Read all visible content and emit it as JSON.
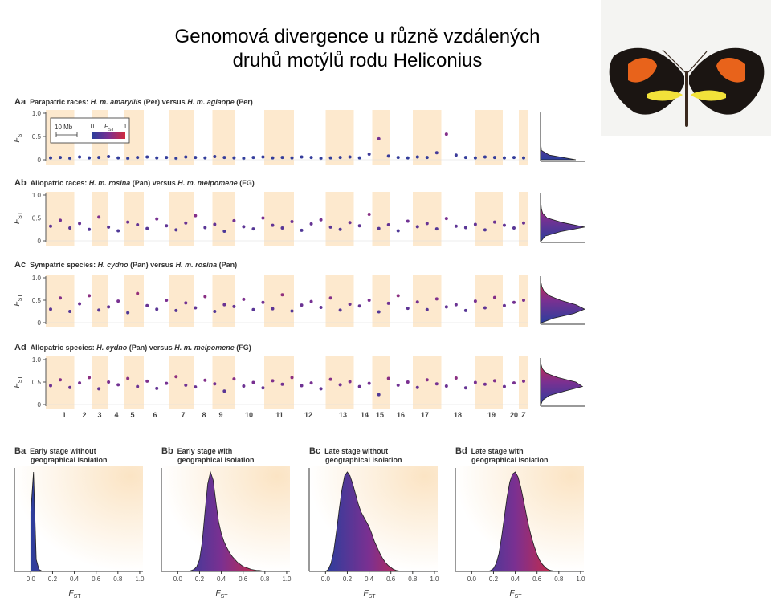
{
  "title_lines": [
    "Genomová divergence u různě vzdálených",
    "druhů motýlů rodu Heliconius"
  ],
  "colors": {
    "low": "#2c3e9c",
    "mid": "#7b3091",
    "high": "#d22a3c"
  },
  "panel_a": {
    "fst_label": {
      "main": "F",
      "sub": "ST"
    },
    "ylim": [
      0,
      1
    ],
    "yticks": [
      0,
      0.5,
      {
        "value": 1,
        "label": "1.0"
      }
    ],
    "legend": {
      "scale": "10 Mb",
      "ticks": [
        0,
        1
      ]
    },
    "chromosomes": [
      "1",
      "2",
      "3",
      "4",
      "5",
      "6",
      "7",
      "8",
      "9",
      "10",
      "11",
      "12",
      "13",
      "14",
      "15",
      "16",
      "17",
      "18",
      "19",
      "20",
      "Z"
    ],
    "marginal_fst": [
      0,
      0.1,
      0.2,
      0.3,
      0.4,
      0.5,
      0.6,
      0.7,
      0.8,
      0.9,
      1
    ],
    "rows": [
      {
        "id": "Aa",
        "label": [
          "Parapatric races: ",
          "H. m. amaryllis",
          " (Per) versus ",
          "H. m. aglaope",
          " (Per)"
        ],
        "fst": [
          0.04,
          0.05,
          0.03,
          0.06,
          0.04,
          0.05,
          0.07,
          0.04,
          0.03,
          0.05,
          0.06,
          0.04,
          0.05,
          0.03,
          0.06,
          0.05,
          0.04,
          0.07,
          0.05,
          0.04,
          0.03,
          0.05,
          0.06,
          0.04,
          0.05,
          0.04,
          0.06,
          0.05,
          0.03,
          0.04,
          0.05,
          0.06,
          0.04,
          0.12,
          0.45,
          0.08,
          0.05,
          0.04,
          0.06,
          0.05,
          0.15,
          0.55,
          0.1,
          0.05,
          0.04,
          0.06,
          0.05,
          0.04,
          0.05,
          0.04
        ],
        "marginal": [
          80,
          20,
          2,
          1,
          0.5,
          0.3,
          0.2,
          0.1,
          0,
          0,
          0
        ]
      },
      {
        "id": "Ab",
        "label": [
          "Allopatric races: ",
          "H. m. rosina",
          " (Pan) versus ",
          "H. m. melpomene",
          " (FG)"
        ],
        "fst": [
          0.32,
          0.45,
          0.28,
          0.38,
          0.25,
          0.52,
          0.3,
          0.22,
          0.41,
          0.35,
          0.27,
          0.48,
          0.33,
          0.24,
          0.39,
          0.55,
          0.29,
          0.36,
          0.21,
          0.44,
          0.31,
          0.26,
          0.5,
          0.34,
          0.28,
          0.42,
          0.23,
          0.37,
          0.46,
          0.3,
          0.25,
          0.4,
          0.33,
          0.58,
          0.27,
          0.35,
          0.22,
          0.43,
          0.31,
          0.38,
          0.26,
          0.49,
          0.32,
          0.29,
          0.36,
          0.24,
          0.41,
          0.34,
          0.28,
          0.39
        ],
        "marginal": [
          2,
          10,
          45,
          100,
          50,
          15,
          5,
          2,
          1,
          0,
          0
        ]
      },
      {
        "id": "Ac",
        "label": [
          "Sympatric species: ",
          "H. cydno",
          " (Pan) versus ",
          "H. m. rosina",
          " (Pan)"
        ],
        "fst": [
          0.3,
          0.55,
          0.25,
          0.42,
          0.6,
          0.28,
          0.35,
          0.48,
          0.22,
          0.65,
          0.38,
          0.3,
          0.5,
          0.27,
          0.44,
          0.33,
          0.58,
          0.25,
          0.4,
          0.36,
          0.52,
          0.29,
          0.45,
          0.31,
          0.62,
          0.26,
          0.39,
          0.47,
          0.34,
          0.55,
          0.28,
          0.41,
          0.37,
          0.5,
          0.24,
          0.43,
          0.6,
          0.32,
          0.46,
          0.29,
          0.53,
          0.35,
          0.4,
          0.27,
          0.48,
          0.33,
          0.56,
          0.38,
          0.45,
          0.5
        ],
        "marginal": [
          3,
          30,
          75,
          100,
          80,
          45,
          20,
          8,
          3,
          1,
          0
        ]
      },
      {
        "id": "Ad",
        "label": [
          "Allopatric species: ",
          "H. cydno",
          " (Pan) versus ",
          "H. m. melpomene",
          " (FG)"
        ],
        "fst": [
          0.42,
          0.55,
          0.38,
          0.48,
          0.6,
          0.35,
          0.5,
          0.44,
          0.58,
          0.4,
          0.52,
          0.36,
          0.47,
          0.62,
          0.43,
          0.39,
          0.54,
          0.46,
          0.3,
          0.57,
          0.41,
          0.49,
          0.37,
          0.53,
          0.45,
          0.6,
          0.42,
          0.48,
          0.35,
          0.56,
          0.44,
          0.51,
          0.4,
          0.47,
          0.22,
          0.58,
          0.43,
          0.5,
          0.38,
          0.55,
          0.46,
          0.41,
          0.59,
          0.37,
          0.49,
          0.45,
          0.53,
          0.4,
          0.48,
          0.52
        ],
        "marginal": [
          1,
          5,
          20,
          55,
          95,
          80,
          40,
          12,
          4,
          1,
          0
        ]
      }
    ]
  },
  "panel_b": {
    "fst_label": {
      "main": "F",
      "sub": "ST"
    },
    "x": [
      0,
      0.025,
      0.05,
      0.075,
      0.1,
      0.125,
      0.15,
      0.175,
      0.2,
      0.225,
      0.25,
      0.275,
      0.3,
      0.325,
      0.35,
      0.375,
      0.4,
      0.425,
      0.45,
      0.475,
      0.5,
      0.525,
      0.55,
      0.575,
      0.6,
      0.625,
      0.65,
      0.675,
      0.7,
      0.725,
      0.75,
      0.775,
      0.8,
      0.825,
      0.85,
      0.875,
      0.9,
      0.925,
      0.95,
      0.975,
      1
    ],
    "xlim": [
      -0.15,
      1.03
    ],
    "ylim": [
      0,
      100
    ],
    "xticks": [
      {
        "value": 0,
        "label": "0.0"
      },
      0.2,
      0.4,
      0.6,
      0.8,
      {
        "value": 1,
        "label": "1.0"
      }
    ],
    "plots": [
      {
        "id": "Ba",
        "label": [
          "Early stage without",
          "geographical isolation"
        ],
        "density": [
          60,
          100,
          12,
          2,
          0.5,
          0,
          0,
          0,
          0,
          0,
          0,
          0,
          0,
          0,
          0,
          0,
          0,
          0,
          0,
          0,
          0,
          0,
          0,
          0,
          0,
          0,
          0,
          0,
          0,
          0,
          0,
          0,
          0,
          0,
          0,
          0,
          0,
          0,
          0,
          0,
          0
        ]
      },
      {
        "id": "Bb",
        "label": [
          "Early stage with",
          "geographical isolation"
        ],
        "density": [
          0,
          0,
          0,
          0,
          0,
          1,
          2,
          5,
          12,
          30,
          60,
          88,
          100,
          92,
          70,
          50,
          38,
          30,
          24,
          19,
          15,
          12,
          9,
          7,
          5,
          4,
          3,
          2,
          1.5,
          1,
          1,
          0.5,
          0.5,
          0,
          0,
          0,
          0,
          0,
          0,
          0,
          0
        ]
      },
      {
        "id": "Bc",
        "label": [
          "Late stage without",
          "geographical isolation"
        ],
        "density": [
          0,
          2,
          8,
          20,
          40,
          62,
          82,
          96,
          100,
          96,
          88,
          78,
          68,
          60,
          55,
          50,
          45,
          38,
          30,
          24,
          18,
          13,
          9,
          6,
          4,
          2,
          1,
          0.5,
          0,
          0,
          0,
          0,
          0,
          0,
          0,
          0,
          0,
          0,
          0,
          0,
          0
        ]
      },
      {
        "id": "Bd",
        "label": [
          "Late stage with",
          "geographical isolation"
        ],
        "density": [
          0,
          0,
          0,
          0,
          0,
          0,
          0,
          1,
          3,
          8,
          18,
          35,
          55,
          75,
          90,
          98,
          100,
          95,
          85,
          72,
          58,
          45,
          34,
          25,
          17,
          11,
          7,
          4,
          2,
          1,
          0.5,
          0,
          0,
          0,
          0,
          0,
          0,
          0,
          0,
          0,
          0
        ]
      }
    ]
  }
}
